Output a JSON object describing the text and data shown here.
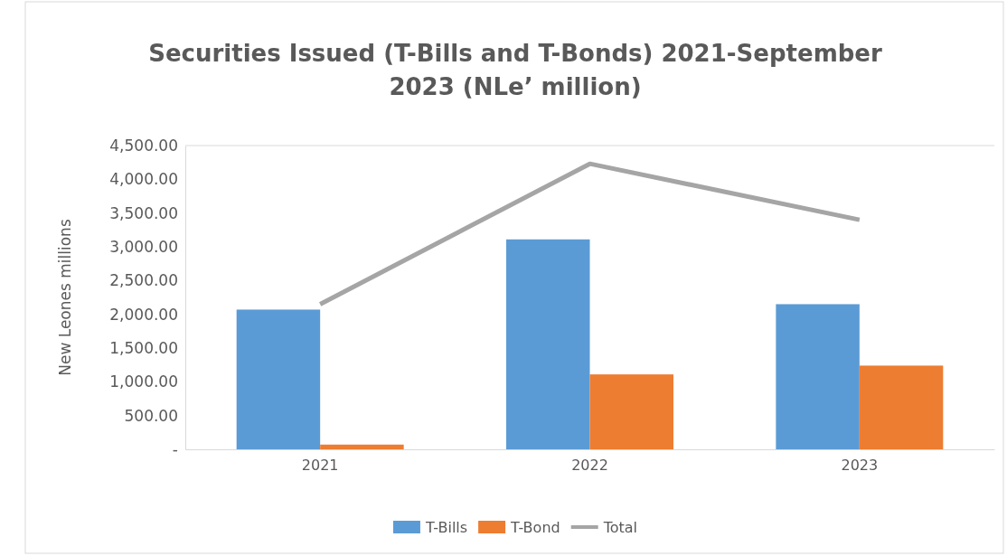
{
  "chart_data": {
    "type": "bar",
    "title": "Securities Issued (T-Bills and T-Bonds) 2021-September 2023 (NLe’ million)",
    "ylabel": "New Leones millions",
    "categories": [
      "2021",
      "2022",
      "2023"
    ],
    "series": [
      {
        "name": "T-Bills",
        "color": "#5b9bd5",
        "values": [
          2070,
          3110,
          2150
        ]
      },
      {
        "name": "T-Bond",
        "color": "#ed7d31",
        "values": [
          70,
          1110,
          1240
        ]
      },
      {
        "name": "Total",
        "type": "line",
        "color": "#a5a5a5",
        "values": [
          2150,
          4230,
          3400
        ]
      }
    ],
    "ylim": [
      0,
      4500
    ],
    "yticks": [
      {
        "value": 0,
        "label": "-"
      },
      {
        "value": 500,
        "label": "500.00"
      },
      {
        "value": 1000,
        "label": "1,000.00"
      },
      {
        "value": 1500,
        "label": "1,500.00"
      },
      {
        "value": 2000,
        "label": "2,000.00"
      },
      {
        "value": 2500,
        "label": "2,500.00"
      },
      {
        "value": 3000,
        "label": "3,000.00"
      },
      {
        "value": 3500,
        "label": "3,500.00"
      },
      {
        "value": 4000,
        "label": "4,000.00"
      },
      {
        "value": 4500,
        "label": "4,500.00"
      }
    ],
    "grid": false,
    "legend": "bottom"
  }
}
